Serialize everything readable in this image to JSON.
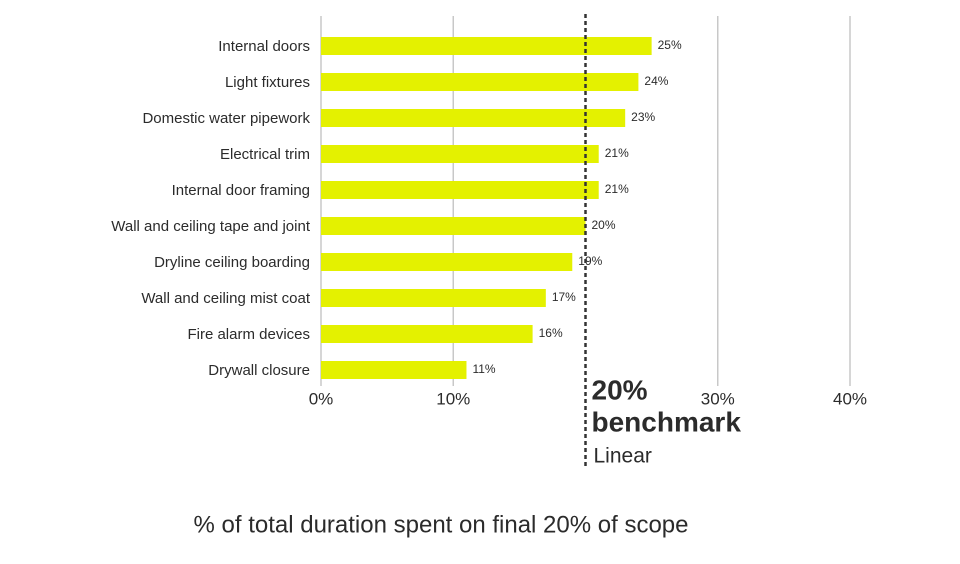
{
  "chart_data": {
    "type": "hbar",
    "categories": [
      "Internal doors",
      "Light fixtures",
      "Domestic water pipework",
      "Electrical trim",
      "Internal door framing",
      "Wall and ceiling tape and joint",
      "Dryline ceiling boarding",
      "Wall and ceiling mist coat",
      "Fire alarm devices",
      "Drywall closure"
    ],
    "values": [
      25,
      24,
      23,
      21,
      21,
      20,
      19,
      17,
      16,
      11
    ],
    "value_labels": [
      "25%",
      "24%",
      "23%",
      "21%",
      "21%",
      "20%",
      "19%",
      "17%",
      "16%",
      "11%"
    ],
    "color": "#e4f100",
    "xlim": [
      0,
      40
    ],
    "xticks": [
      {
        "value": 0,
        "label": "0%"
      },
      {
        "value": 10,
        "label": "10%"
      },
      {
        "value": 30,
        "label": "30%"
      },
      {
        "value": 40,
        "label": "40%"
      }
    ],
    "grid": true,
    "benchmark": {
      "value": 20,
      "label": "20%",
      "name": "benchmark",
      "note": "Linear"
    },
    "x_label": "% of total duration spent on final 20% of scope"
  }
}
